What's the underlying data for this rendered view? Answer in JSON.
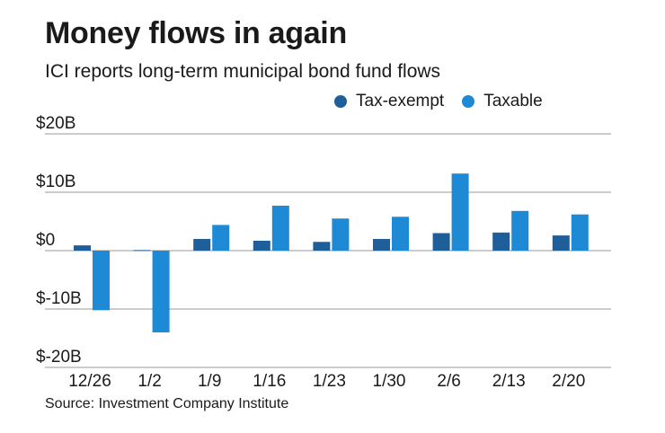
{
  "title": "Money flows in again",
  "subtitle": "ICI reports long-term municipal bond fund flows",
  "source": "Source: Investment Company Institute",
  "colors": {
    "tax_exempt": "#1f5f99",
    "taxable": "#1e8ad6",
    "grid": "#9a9a9a",
    "text": "#1a1a1a"
  },
  "chart_data": {
    "type": "bar",
    "title": "Money flows in again",
    "subtitle": "ICI reports long-term municipal bond fund flows",
    "xlabel": "",
    "ylabel": "",
    "ylim": [
      -20,
      20
    ],
    "yticks": [
      20,
      10,
      0,
      -10,
      -20
    ],
    "ytick_labels": [
      "$20B",
      "$10B",
      "$0",
      "$-10B",
      "$-20B"
    ],
    "categories": [
      "12/26",
      "1/2",
      "1/9",
      "1/16",
      "1/23",
      "1/30",
      "2/6",
      "2/13",
      "2/20"
    ],
    "legend_position": "top-right",
    "grid": true,
    "series": [
      {
        "name": "Tax-exempt",
        "color_key": "tax_exempt",
        "values": [
          0.9,
          0.1,
          2.0,
          1.7,
          1.5,
          2.0,
          3.0,
          3.1,
          2.6
        ]
      },
      {
        "name": "Taxable",
        "color_key": "taxable",
        "values": [
          -10.2,
          -14.0,
          4.4,
          7.7,
          5.5,
          5.8,
          13.2,
          6.8,
          6.2
        ]
      }
    ]
  }
}
